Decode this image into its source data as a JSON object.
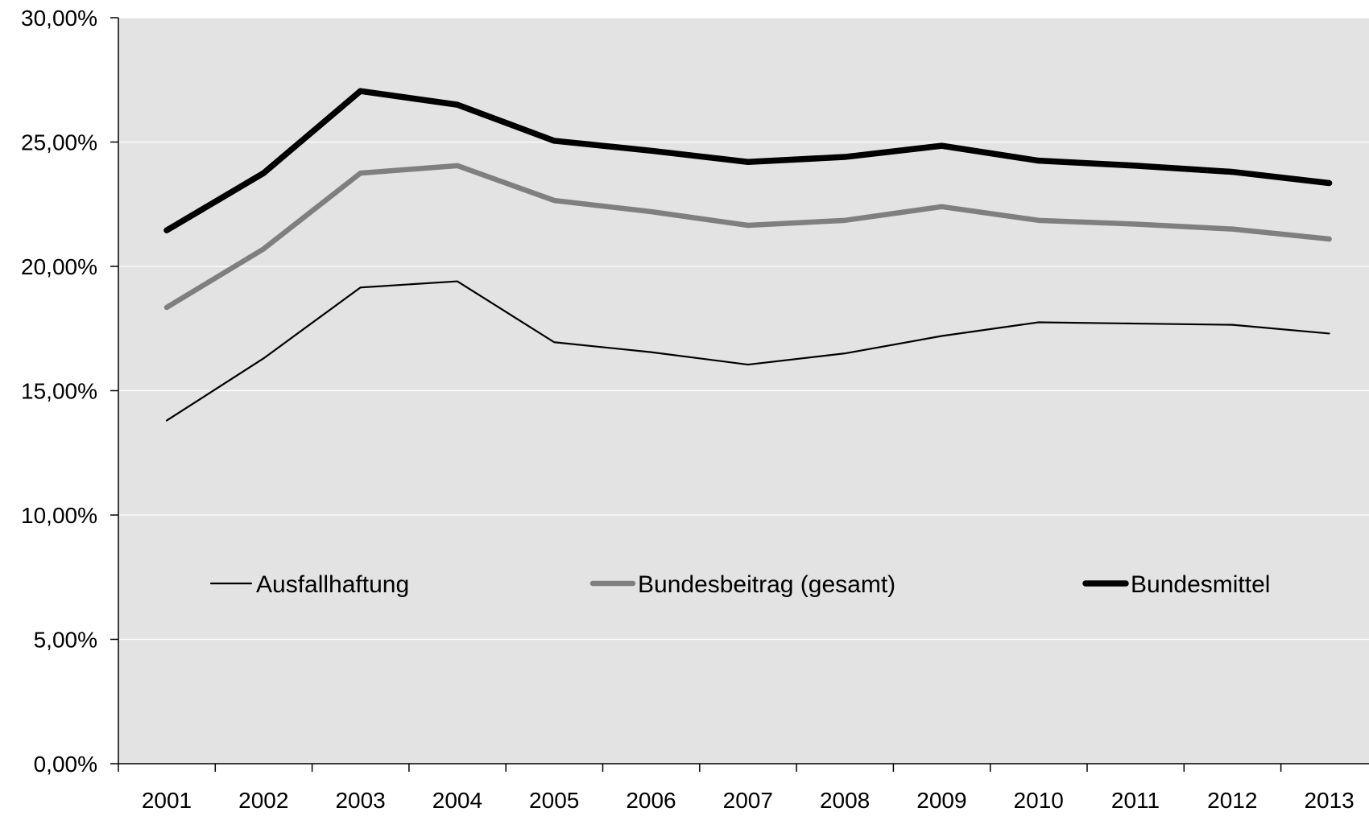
{
  "chart_data": {
    "type": "line",
    "title": "",
    "xlabel": "",
    "ylabel": "",
    "x": [
      "2001",
      "2002",
      "2003",
      "2004",
      "2005",
      "2006",
      "2007",
      "2008",
      "2009",
      "2010",
      "2011",
      "2012",
      "2013"
    ],
    "ylim": [
      0,
      30
    ],
    "yticks": [
      0,
      5,
      10,
      15,
      20,
      25,
      30
    ],
    "ytick_labels": [
      "0,00%",
      "5,00%",
      "10,00%",
      "15,00%",
      "20,00%",
      "25,00%",
      "30,00%"
    ],
    "grid": true,
    "plot_background": "#e3e3e3",
    "legend_position": "inside-lower-middle",
    "series": [
      {
        "name": "Ausfallhaftung",
        "color": "#000000",
        "line_weight": "thin",
        "values": [
          13.8,
          16.3,
          19.15,
          19.4,
          16.95,
          16.55,
          16.05,
          16.5,
          17.2,
          17.75,
          17.7,
          17.65,
          17.3
        ]
      },
      {
        "name": "Bundesbeitrag (gesamt)",
        "color": "#7f7f7f",
        "line_weight": "medium",
        "values": [
          18.35,
          20.7,
          23.75,
          24.05,
          22.65,
          22.2,
          21.65,
          21.85,
          22.4,
          21.85,
          21.7,
          21.5,
          21.1
        ]
      },
      {
        "name": "Bundesmittel",
        "color": "#000000",
        "line_weight": "thick",
        "values": [
          21.45,
          23.75,
          27.05,
          26.5,
          25.05,
          24.65,
          24.2,
          24.4,
          24.85,
          24.25,
          24.05,
          23.8,
          23.35
        ]
      }
    ]
  }
}
